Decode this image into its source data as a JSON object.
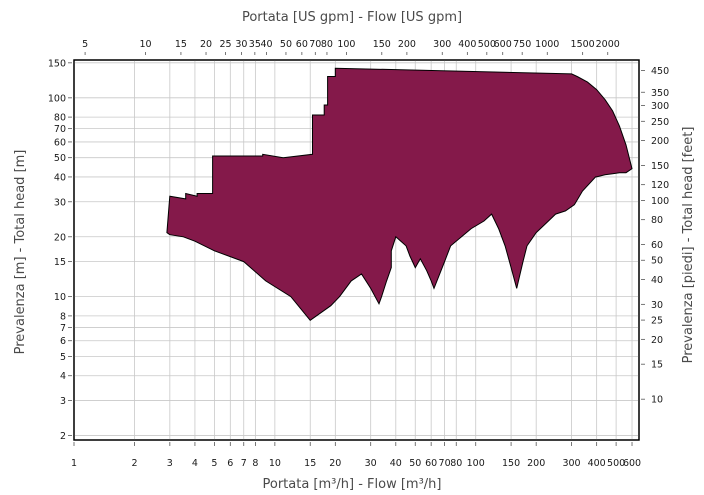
{
  "chart_data": {
    "type": "area",
    "title": "",
    "fill_color": "#84194a",
    "grid": true,
    "xscale": "log",
    "yscale": "log",
    "xlabel_bottom": "Portata [m³/h] - Flow [m³/h]",
    "xlabel_top": "Portata [US gpm] - Flow [US gpm]",
    "ylabel_left": "Prevalenza [m] - Total head [m]",
    "ylabel_right": "Prevalenza [piedi] - Total head [feet]",
    "xlim": [
      1,
      650
    ],
    "ylim": [
      1.9,
      155
    ],
    "x_ticks": [
      1,
      2,
      3,
      4,
      5,
      6,
      7,
      8,
      10,
      15,
      20,
      30,
      40,
      50,
      60,
      70,
      80,
      100,
      150,
      200,
      300,
      400,
      500,
      600
    ],
    "x_tick_labels": [
      "1",
      "2",
      "3",
      "4",
      "5",
      "6",
      "7",
      "8",
      "10",
      "15",
      "20",
      "30",
      "40",
      "50",
      "60",
      "70",
      "80",
      "100",
      "150",
      "200",
      "300",
      "400",
      "500",
      "600"
    ],
    "y_ticks": [
      2,
      3,
      4,
      5,
      6,
      7,
      8,
      10,
      15,
      20,
      30,
      40,
      50,
      60,
      70,
      80,
      100,
      150
    ],
    "y_tick_labels": [
      "2",
      "3",
      "4",
      "5",
      "6",
      "7",
      "8",
      "10",
      "15",
      "20",
      "30",
      "40",
      "50",
      "60",
      "70",
      "80",
      "100",
      "150"
    ],
    "top_ticks_gpm": [
      5,
      10,
      15,
      20,
      25,
      30,
      35,
      40,
      50,
      60,
      70,
      80,
      100,
      150,
      200,
      300,
      400,
      500,
      600,
      750,
      1000,
      1500,
      2000
    ],
    "top_tick_labels": [
      "5",
      "10",
      "15",
      "20",
      "25",
      "30",
      "35",
      "40",
      "50",
      "60",
      "70",
      "80",
      "100",
      "150",
      "200",
      "300",
      "400",
      "500",
      "600",
      "750",
      "1000",
      "1500",
      "2000"
    ],
    "right_ticks_feet": [
      10,
      15,
      20,
      25,
      30,
      40,
      50,
      60,
      80,
      100,
      120,
      150,
      200,
      250,
      300,
      350,
      450
    ],
    "right_tick_labels": [
      "10",
      "15",
      "20",
      "25",
      "30",
      "40",
      "50",
      "60",
      "80",
      "100",
      "120",
      "150",
      "200",
      "250",
      "300",
      "350",
      "450"
    ],
    "envelope": {
      "x": [
        2.9,
        3.0,
        3.6,
        3.6,
        4.1,
        4.1,
        4.9,
        4.9,
        8.7,
        8.7,
        11,
        11,
        15.4,
        15.4,
        17.6,
        17.6,
        18.3,
        18.3,
        20,
        20,
        300,
        320,
        360,
        400,
        440,
        480,
        520,
        560,
        600,
        560,
        520,
        480,
        440,
        400,
        395,
        340,
        310,
        280,
        250,
        240,
        220,
        200,
        180,
        172,
        160,
        150,
        140,
        130,
        120,
        110,
        95,
        85,
        75,
        70,
        62,
        60,
        57,
        53,
        52,
        50,
        47,
        45,
        40,
        38,
        38,
        36,
        34,
        33,
        30,
        27,
        24,
        21,
        19,
        15,
        12,
        9,
        7,
        5,
        4,
        3.5,
        3.0,
        2.9
      ],
      "y": [
        21,
        32,
        31,
        33,
        32,
        33,
        33,
        51,
        51,
        52,
        50,
        50,
        52,
        82,
        82,
        92,
        92,
        128,
        128,
        141,
        132,
        128,
        120,
        110,
        98,
        86,
        72,
        58,
        44,
        42,
        42,
        41.5,
        41,
        40,
        40,
        34,
        29,
        27,
        26,
        25,
        23,
        21,
        18,
        15,
        11,
        14,
        18,
        22,
        26,
        24,
        22,
        20,
        18,
        15,
        11,
        12,
        13.5,
        15.5,
        15,
        14,
        16,
        18,
        20,
        17,
        14,
        12,
        10,
        9.2,
        11,
        13,
        12,
        10,
        9,
        7.6,
        10,
        12,
        15,
        17,
        19,
        20,
        20.5,
        21
      ]
    }
  }
}
